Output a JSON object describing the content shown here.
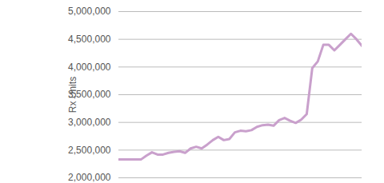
{
  "chart_data": {
    "type": "line",
    "y_label": "Rx Units",
    "categories": [
      null,
      null,
      null,
      null,
      null,
      null,
      null,
      null,
      null,
      null,
      null,
      null,
      null,
      null,
      null,
      null,
      null,
      null,
      null,
      null,
      null,
      null,
      null,
      null,
      null,
      null,
      null,
      null,
      null,
      null,
      null,
      null,
      null,
      null,
      null,
      null,
      null,
      null,
      null,
      null,
      null,
      null,
      null,
      null,
      null
    ],
    "values": [
      2330000,
      2330000,
      2330000,
      2330000,
      2330000,
      2400000,
      2460000,
      2420000,
      2420000,
      2450000,
      2470000,
      2480000,
      2450000,
      2530000,
      2560000,
      2530000,
      2600000,
      2680000,
      2740000,
      2680000,
      2700000,
      2820000,
      2850000,
      2840000,
      2860000,
      2920000,
      2950000,
      2960000,
      2940000,
      3040000,
      3080000,
      3030000,
      2990000,
      3050000,
      3150000,
      3980000,
      4100000,
      4400000,
      4400000,
      4300000,
      4400000,
      4500000,
      4600000,
      4500000,
      4380000
    ],
    "color": "#c9a0cc",
    "ylim": [
      2000000,
      5000000
    ],
    "yticks": [
      {
        "value": 2000000,
        "label": "2,000,000"
      },
      {
        "value": 2500000,
        "label": "2,500,000"
      },
      {
        "value": 3000000,
        "label": "3,000,000"
      },
      {
        "value": 3500000,
        "label": "3,500,000"
      },
      {
        "value": 4000000,
        "label": "4,000,000"
      },
      {
        "value": 4500000,
        "label": "4,500,000"
      },
      {
        "value": 5000000,
        "label": "5,000,000"
      }
    ],
    "grid": true,
    "tick_labels": "y"
  }
}
